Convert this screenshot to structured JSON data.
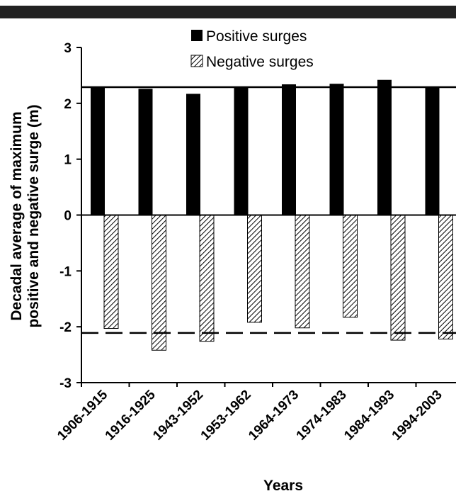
{
  "chart_data": {
    "type": "bar",
    "categories": [
      "1906-1915",
      "1916-1925",
      "1943-1952",
      "1953-1962",
      "1964-1973",
      "1974-1983",
      "1984-1993",
      "1994-2003"
    ],
    "series": [
      {
        "name": "Positive surges",
        "values": [
          2.28,
          2.26,
          2.17,
          2.29,
          2.34,
          2.35,
          2.42,
          2.28
        ],
        "color": "#000000",
        "pattern": "solid"
      },
      {
        "name": "Negative surges",
        "values": [
          -2.03,
          -2.42,
          -2.26,
          -1.92,
          -2.02,
          -1.83,
          -2.24,
          -2.22
        ],
        "color": "#888888",
        "pattern": "diagonal-hatch"
      }
    ],
    "reference_lines": [
      {
        "value": 2.29,
        "style": "solid"
      },
      {
        "value": -2.11,
        "style": "dashed"
      }
    ],
    "ylabel_lines": [
      "Decadal average of maximum",
      "positive and negative surge (m)"
    ],
    "xlabel": "Years",
    "ylim": [
      -3,
      3
    ],
    "yticks": [
      "3",
      "2",
      "1",
      "0",
      "-1",
      "-2",
      "-3"
    ],
    "ytick_values": [
      3,
      2,
      1,
      0,
      -1,
      -2,
      -3
    ],
    "grid": false,
    "legend_position": "top-center"
  }
}
